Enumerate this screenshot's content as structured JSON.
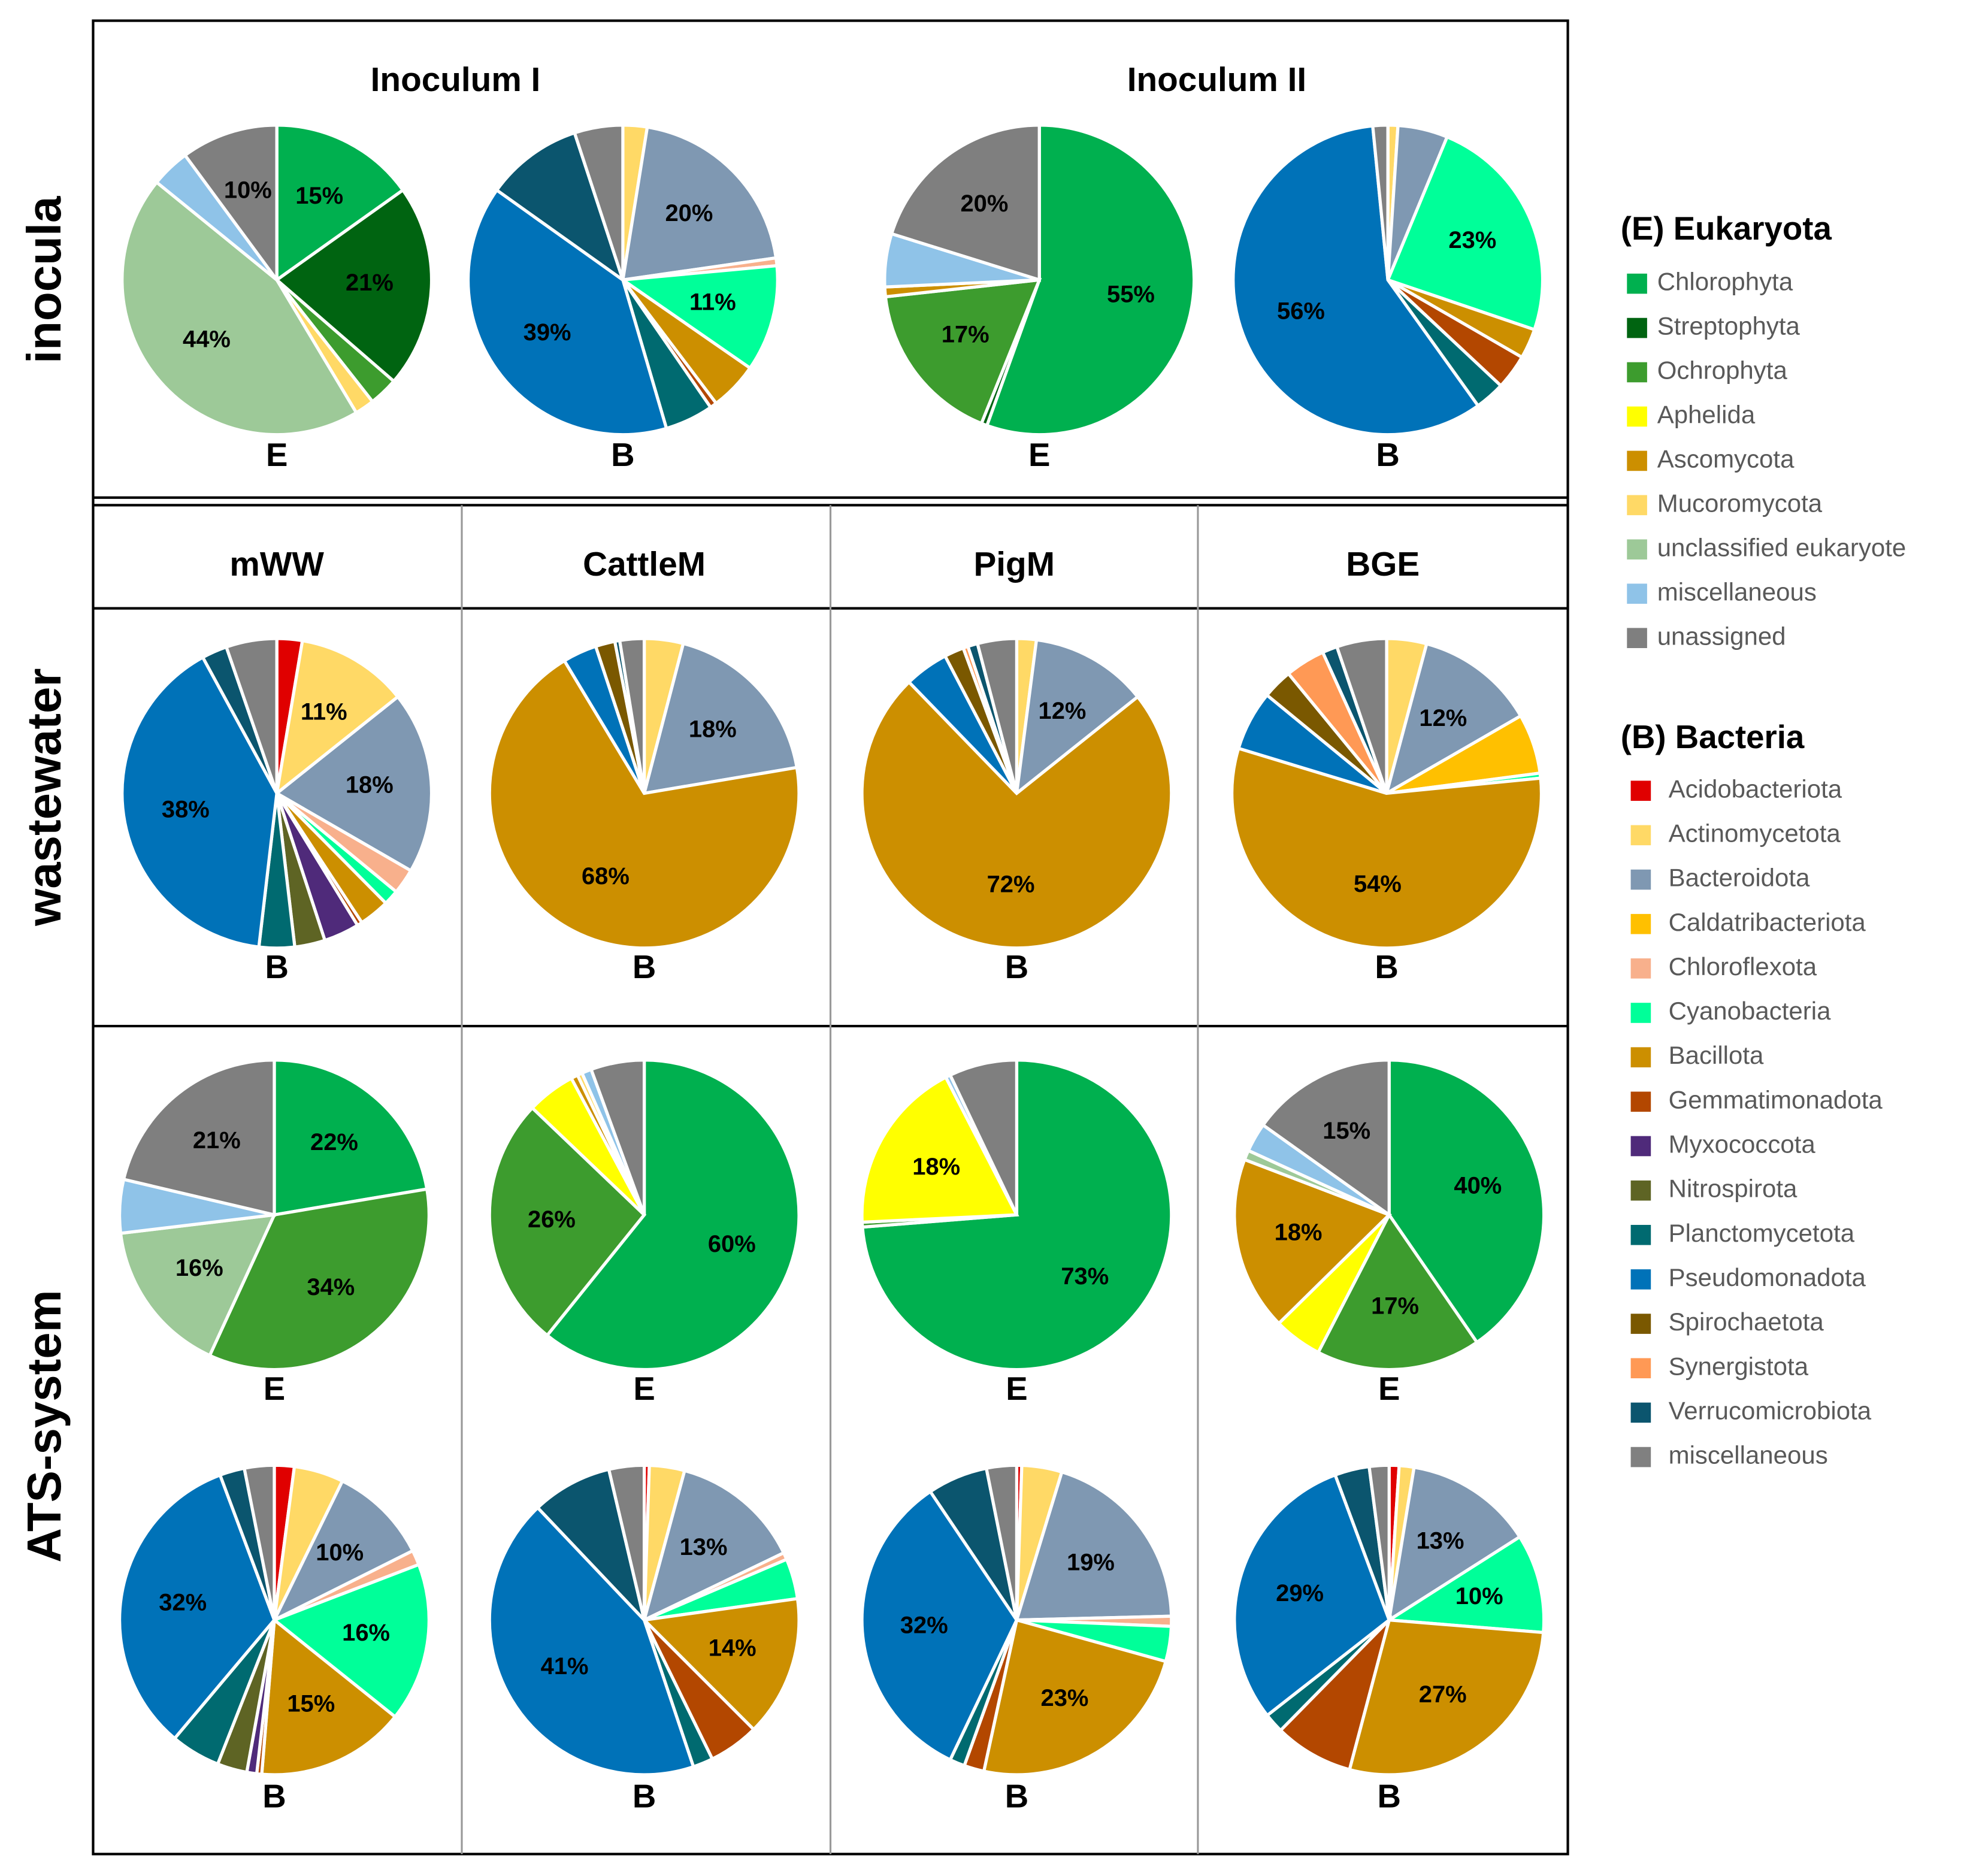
{
  "chart_data": {
    "type": "pie",
    "row_labels": {
      "inocula": "inocula",
      "wastewater": "wastewater",
      "ats": "ATS-system"
    },
    "titles": {
      "inoculum_1": "Inoculum I",
      "inoculum_2": "Inoculum II"
    },
    "columns": [
      "mWW",
      "CattleM",
      "PigM",
      "BGE"
    ],
    "legend": {
      "eukaryota_title": "(E) Eukaryota",
      "eukaryota": [
        {
          "name": "Chlorophyta",
          "color": "#00b04f"
        },
        {
          "name": "Streptophyta",
          "color": "#006411"
        },
        {
          "name": "Ochrophyta",
          "color": "#3d9c2e"
        },
        {
          "name": "Aphelida",
          "color": "#ffff00"
        },
        {
          "name": "Ascomycota",
          "color": "#cc8f00"
        },
        {
          "name": "Mucoromycota",
          "color": "#ffd966"
        },
        {
          "name": "unclassified eukaryote",
          "color": "#9dc998"
        },
        {
          "name": "miscellaneous",
          "color": "#8fc3e8"
        },
        {
          "name": "unassigned",
          "color": "#7f7f7f"
        }
      ],
      "bacteria_title": "(B) Bacteria",
      "bacteria": [
        {
          "name": "Acidobacteriota",
          "color": "#e00000"
        },
        {
          "name": "Actinomycetota",
          "color": "#ffd966"
        },
        {
          "name": "Bacteroidota",
          "color": "#7f98b2"
        },
        {
          "name": "Caldatribacteriota",
          "color": "#ffc000"
        },
        {
          "name": "Chloroflexota",
          "color": "#f8b08c"
        },
        {
          "name": "Cyanobacteria",
          "color": "#00ff99"
        },
        {
          "name": "Bacillota",
          "color": "#cc8f00"
        },
        {
          "name": "Gemmatimonadota",
          "color": "#b34700"
        },
        {
          "name": "Myxococcota",
          "color": "#4f2a7a"
        },
        {
          "name": "Nitrospirota",
          "color": "#5e6424"
        },
        {
          "name": "Planctomycetota",
          "color": "#006a70"
        },
        {
          "name": "Pseudomonadota",
          "color": "#0072b8"
        },
        {
          "name": "Spirochaetota",
          "color": "#7a5800"
        },
        {
          "name": "Synergistota",
          "color": "#ff9955"
        },
        {
          "name": "Verrucomicrobiota",
          "color": "#0b556e"
        },
        {
          "name": "miscellaneous",
          "color": "#808080"
        }
      ]
    },
    "pies": [
      {
        "id": "inoc1-E",
        "letter": "E",
        "domain": "eukaryota",
        "slices": [
          {
            "taxon": "Chlorophyta",
            "value": 15,
            "label": "15%"
          },
          {
            "taxon": "Streptophyta",
            "value": 21,
            "label": "21%"
          },
          {
            "taxon": "Ochrophyta",
            "value": 3
          },
          {
            "taxon": "Mucoromycota",
            "value": 2
          },
          {
            "taxon": "unclassified eukaryote",
            "value": 44,
            "label": "44%"
          },
          {
            "taxon": "miscellaneous",
            "value": 4
          },
          {
            "taxon": "unassigned",
            "value": 10,
            "label": "10%"
          }
        ]
      },
      {
        "id": "inoc1-B",
        "letter": "B",
        "domain": "bacteria",
        "slices": [
          {
            "taxon": "Actinomycetota",
            "value": 2.5
          },
          {
            "taxon": "Bacteroidota",
            "value": 20,
            "label": "20%"
          },
          {
            "taxon": "Chloroflexota",
            "value": 0.8
          },
          {
            "taxon": "Cyanobacteria",
            "value": 11,
            "label": "11%"
          },
          {
            "taxon": "Bacillota",
            "value": 5
          },
          {
            "taxon": "Gemmatimonadota",
            "value": 0.7
          },
          {
            "taxon": "Planctomycetota",
            "value": 5
          },
          {
            "taxon": "Pseudomonadota",
            "value": 39,
            "label": "39%"
          },
          {
            "taxon": "Verrucomicrobiota",
            "value": 10
          },
          {
            "taxon": "miscellaneous",
            "value": 5
          }
        ]
      },
      {
        "id": "inoc2-E",
        "letter": "E",
        "domain": "eukaryota",
        "slices": [
          {
            "taxon": "Chlorophyta",
            "value": 55,
            "label": "55%"
          },
          {
            "taxon": "Streptophyta",
            "value": 0.6
          },
          {
            "taxon": "Ochrophyta",
            "value": 17,
            "label": "17%"
          },
          {
            "taxon": "Ascomycota",
            "value": 1
          },
          {
            "taxon": "miscellaneous",
            "value": 5.5
          },
          {
            "taxon": "unassigned",
            "value": 20,
            "label": "20%"
          }
        ]
      },
      {
        "id": "inoc2-B",
        "letter": "B",
        "domain": "bacteria",
        "slices": [
          {
            "taxon": "Actinomycetota",
            "value": 1
          },
          {
            "taxon": "Bacteroidota",
            "value": 5
          },
          {
            "taxon": "Cyanobacteria",
            "value": 23,
            "label": "23%"
          },
          {
            "taxon": "Bacillota",
            "value": 3
          },
          {
            "taxon": "Gemmatimonadota",
            "value": 3.5
          },
          {
            "taxon": "Planctomycetota",
            "value": 3
          },
          {
            "taxon": "Pseudomonadota",
            "value": 56,
            "label": "56%"
          },
          {
            "taxon": "miscellaneous",
            "value": 1.5
          }
        ]
      },
      {
        "id": "ww-mWW-B",
        "letter": "B",
        "domain": "bacteria",
        "slices": [
          {
            "taxon": "Acidobacteriota",
            "value": 2.5
          },
          {
            "taxon": "Actinomycetota",
            "value": 11,
            "label": "11%"
          },
          {
            "taxon": "Bacteroidota",
            "value": 18,
            "label": "18%"
          },
          {
            "taxon": "Chloroflexota",
            "value": 2.5
          },
          {
            "taxon": "Cyanobacteria",
            "value": 1.5
          },
          {
            "taxon": "Bacillota",
            "value": 3
          },
          {
            "taxon": "Gemmatimonadota",
            "value": 0.5
          },
          {
            "taxon": "Myxococcota",
            "value": 3.5
          },
          {
            "taxon": "Nitrospirota",
            "value": 3
          },
          {
            "taxon": "Planctomycetota",
            "value": 3.5
          },
          {
            "taxon": "Pseudomonadota",
            "value": 38,
            "label": "38%"
          },
          {
            "taxon": "Verrucomicrobiota",
            "value": 2.5
          },
          {
            "taxon": "miscellaneous",
            "value": 5
          }
        ]
      },
      {
        "id": "ww-CattleM-B",
        "letter": "B",
        "domain": "bacteria",
        "slices": [
          {
            "taxon": "Actinomycetota",
            "value": 4
          },
          {
            "taxon": "Bacteroidota",
            "value": 18,
            "label": "18%"
          },
          {
            "taxon": "Bacillota",
            "value": 68,
            "label": "68%"
          },
          {
            "taxon": "Pseudomonadota",
            "value": 3.5
          },
          {
            "taxon": "Spirochaetota",
            "value": 2
          },
          {
            "taxon": "Verrucomicrobiota",
            "value": 0.5
          },
          {
            "taxon": "miscellaneous",
            "value": 2.5
          }
        ]
      },
      {
        "id": "ww-PigM-B",
        "letter": "B",
        "domain": "bacteria",
        "slices": [
          {
            "taxon": "Actinomycetota",
            "value": 2
          },
          {
            "taxon": "Bacteroidota",
            "value": 12,
            "label": "12%"
          },
          {
            "taxon": "Bacillota",
            "value": 72,
            "label": "72%"
          },
          {
            "taxon": "Pseudomonadota",
            "value": 4.5
          },
          {
            "taxon": "Spirochaetota",
            "value": 2
          },
          {
            "taxon": "Synergistota",
            "value": 0.5
          },
          {
            "taxon": "Verrucomicrobiota",
            "value": 1
          },
          {
            "taxon": "miscellaneous",
            "value": 4
          }
        ]
      },
      {
        "id": "ww-BGE-B",
        "letter": "B",
        "domain": "bacteria",
        "slices": [
          {
            "taxon": "Actinomycetota",
            "value": 4
          },
          {
            "taxon": "Bacteroidota",
            "value": 12,
            "label": "12%"
          },
          {
            "taxon": "Caldatribacteriota",
            "value": 6
          },
          {
            "taxon": "Cyanobacteria",
            "value": 0.5
          },
          {
            "taxon": "Bacillota",
            "value": 54,
            "label": "54%"
          },
          {
            "taxon": "Pseudomonadota",
            "value": 6
          },
          {
            "taxon": "Spirochaetota",
            "value": 3
          },
          {
            "taxon": "Synergistota",
            "value": 4
          },
          {
            "taxon": "Verrucomicrobiota",
            "value": 1.5
          },
          {
            "taxon": "miscellaneous",
            "value": 5
          }
        ]
      },
      {
        "id": "ats-mWW-E",
        "letter": "E",
        "domain": "eukaryota",
        "slices": [
          {
            "taxon": "Chlorophyta",
            "value": 22,
            "label": "22%"
          },
          {
            "taxon": "Ochrophyta",
            "value": 34,
            "label": "34%"
          },
          {
            "taxon": "unclassified eukaryote",
            "value": 16,
            "label": "16%"
          },
          {
            "taxon": "miscellaneous",
            "value": 5.5
          },
          {
            "taxon": "unassigned",
            "value": 21,
            "label": "21%"
          }
        ]
      },
      {
        "id": "ats-CattleM-E",
        "letter": "E",
        "domain": "eukaryota",
        "slices": [
          {
            "taxon": "Chlorophyta",
            "value": 60,
            "label": "60%"
          },
          {
            "taxon": "Ochrophyta",
            "value": 26,
            "label": "26%"
          },
          {
            "taxon": "Aphelida",
            "value": 5
          },
          {
            "taxon": "Ascomycota",
            "value": 0.7
          },
          {
            "taxon": "Mucoromycota",
            "value": 0.5
          },
          {
            "taxon": "miscellaneous",
            "value": 1
          },
          {
            "taxon": "unassigned",
            "value": 5.5
          }
        ]
      },
      {
        "id": "ats-PigM-E",
        "letter": "E",
        "domain": "eukaryota",
        "slices": [
          {
            "taxon": "Chlorophyta",
            "value": 73,
            "label": "73%"
          },
          {
            "taxon": "Ochrophyta",
            "value": 0.5
          },
          {
            "taxon": "Aphelida",
            "value": 18,
            "label": "18%"
          },
          {
            "taxon": "miscellaneous",
            "value": 0.5
          },
          {
            "taxon": "unassigned",
            "value": 7
          }
        ]
      },
      {
        "id": "ats-BGE-E",
        "letter": "E",
        "domain": "eukaryota",
        "slices": [
          {
            "taxon": "Chlorophyta",
            "value": 40,
            "label": "40%"
          },
          {
            "taxon": "Ochrophyta",
            "value": 17,
            "label": "17%"
          },
          {
            "taxon": "Aphelida",
            "value": 5
          },
          {
            "taxon": "Ascomycota",
            "value": 18,
            "label": "18%"
          },
          {
            "taxon": "unclassified eukaryote",
            "value": 1
          },
          {
            "taxon": "miscellaneous",
            "value": 3
          },
          {
            "taxon": "unassigned",
            "value": 15,
            "label": "15%"
          }
        ]
      },
      {
        "id": "ats-mWW-B",
        "letter": "B",
        "domain": "bacteria",
        "slices": [
          {
            "taxon": "Acidobacteriota",
            "value": 2
          },
          {
            "taxon": "Actinomycetota",
            "value": 5
          },
          {
            "taxon": "Bacteroidota",
            "value": 10,
            "label": "10%"
          },
          {
            "taxon": "Chloroflexota",
            "value": 1.5
          },
          {
            "taxon": "Cyanobacteria",
            "value": 16,
            "label": "16%"
          },
          {
            "taxon": "Bacillota",
            "value": 15,
            "label": "15%"
          },
          {
            "taxon": "Gemmatimonadota",
            "value": 0.5
          },
          {
            "taxon": "Myxococcota",
            "value": 1
          },
          {
            "taxon": "Nitrospirota",
            "value": 3
          },
          {
            "taxon": "Planctomycetota",
            "value": 5
          },
          {
            "taxon": "Pseudomonadota",
            "value": 32,
            "label": "32%"
          },
          {
            "taxon": "Verrucomicrobiota",
            "value": 2.5
          },
          {
            "taxon": "miscellaneous",
            "value": 3
          }
        ]
      },
      {
        "id": "ats-CattleM-B",
        "letter": "B",
        "domain": "bacteria",
        "slices": [
          {
            "taxon": "Acidobacteriota",
            "value": 0.5
          },
          {
            "taxon": "Actinomycetota",
            "value": 3.5
          },
          {
            "taxon": "Bacteroidota",
            "value": 13,
            "label": "13%"
          },
          {
            "taxon": "Chloroflexota",
            "value": 0.7
          },
          {
            "taxon": "Cyanobacteria",
            "value": 4
          },
          {
            "taxon": "Bacillota",
            "value": 14,
            "label": "14%"
          },
          {
            "taxon": "Gemmatimonadota",
            "value": 5
          },
          {
            "taxon": "Planctomycetota",
            "value": 2
          },
          {
            "taxon": "Pseudomonadota",
            "value": 41,
            "label": "41%"
          },
          {
            "taxon": "Verrucomicrobiota",
            "value": 8
          },
          {
            "taxon": "miscellaneous",
            "value": 3.5
          }
        ]
      },
      {
        "id": "ats-PigM-B",
        "letter": "B",
        "domain": "bacteria",
        "slices": [
          {
            "taxon": "Acidobacteriota",
            "value": 0.5
          },
          {
            "taxon": "Actinomycetota",
            "value": 4
          },
          {
            "taxon": "Bacteroidota",
            "value": 19,
            "label": "19%"
          },
          {
            "taxon": "Chloroflexota",
            "value": 1
          },
          {
            "taxon": "Cyanobacteria",
            "value": 3.5
          },
          {
            "taxon": "Bacillota",
            "value": 23,
            "label": "23%"
          },
          {
            "taxon": "Gemmatimonadota",
            "value": 2
          },
          {
            "taxon": "Planctomycetota",
            "value": 1.5
          },
          {
            "taxon": "Pseudomonadota",
            "value": 32,
            "label": "32%"
          },
          {
            "taxon": "Verrucomicrobiota",
            "value": 6
          },
          {
            "taxon": "miscellaneous",
            "value": 3
          }
        ]
      },
      {
        "id": "ats-BGE-B",
        "letter": "B",
        "domain": "bacteria",
        "slices": [
          {
            "taxon": "Acidobacteriota",
            "value": 1
          },
          {
            "taxon": "Actinomycetota",
            "value": 1.5
          },
          {
            "taxon": "Bacteroidota",
            "value": 13,
            "label": "13%"
          },
          {
            "taxon": "Cyanobacteria",
            "value": 10,
            "label": "10%"
          },
          {
            "taxon": "Bacillota",
            "value": 27,
            "label": "27%"
          },
          {
            "taxon": "Gemmatimonadota",
            "value": 8
          },
          {
            "taxon": "Planctomycetota",
            "value": 2
          },
          {
            "taxon": "Pseudomonadota",
            "value": 29,
            "label": "29%"
          },
          {
            "taxon": "Verrucomicrobiota",
            "value": 3.5
          },
          {
            "taxon": "miscellaneous",
            "value": 2
          }
        ]
      }
    ]
  }
}
